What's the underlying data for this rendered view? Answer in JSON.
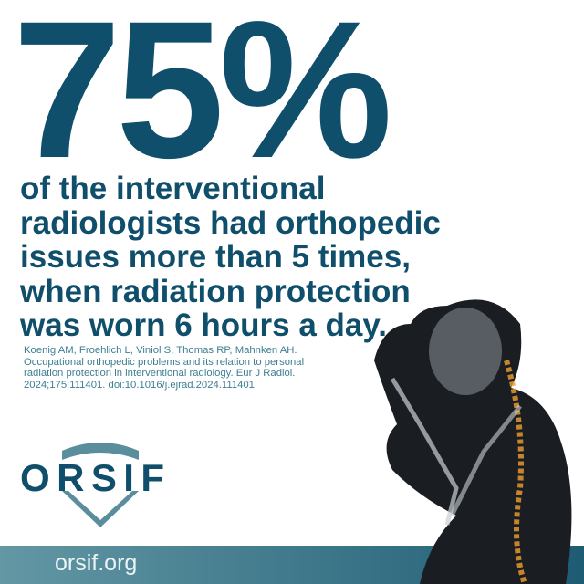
{
  "headline": {
    "percent": "75%"
  },
  "statement": {
    "lines": [
      "of the interventional",
      "radiologists had orthopedic",
      "issues more than 5 times,",
      "when radiation protection",
      "was worn 6 hours a day."
    ]
  },
  "citation": {
    "lines": [
      "Koenig AM, Froehlich L, Viniol S, Thomas RP, Mahnken AH.",
      "Occupational orthopedic problems and its relation to personal",
      "radiation protection in interventional radiology. Eur J Radiol.",
      "2024;175:111401. doi:10.1016/j.ejrad.2024.111401"
    ]
  },
  "logo": {
    "text": "ORSIF"
  },
  "footer": {
    "url": "orsif.org"
  },
  "colors": {
    "primary": "#0f4f6b",
    "shield": "#5a8e9c",
    "footer_start": "#6397a4",
    "footer_end": "#1e5c74",
    "spine_glow": "#f0a030"
  },
  "illustration": {
    "icon": "skeleton-figure-holding-head"
  }
}
